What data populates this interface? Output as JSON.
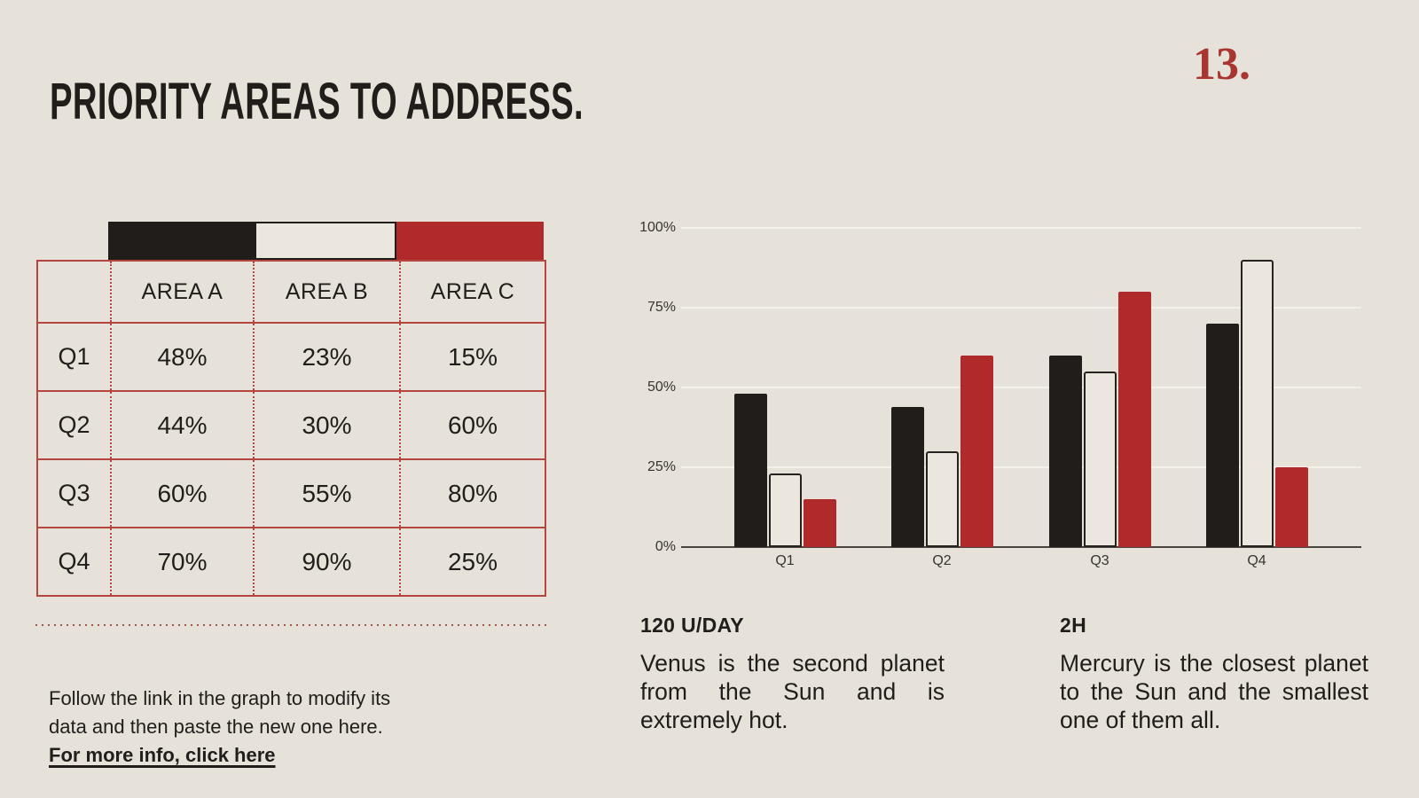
{
  "slide": {
    "title": "PRIORITY AREAS TO ADDRESS.",
    "page_number": "13."
  },
  "colors": {
    "background": "#e6e2d9",
    "ink": "#201d1a",
    "accent_red": "#b12a2b",
    "table_border_red": "#b5463f",
    "cream": "#ebe7de",
    "gridline": "#f2f0e9",
    "page_number_red": "#a93531"
  },
  "table": {
    "corner": "",
    "column_headers": [
      "AREA A",
      "AREA B",
      "AREA C"
    ],
    "rows": [
      {
        "label": "Q1",
        "values": [
          "48%",
          "23%",
          "15%"
        ]
      },
      {
        "label": "Q2",
        "values": [
          "44%",
          "30%",
          "60%"
        ]
      },
      {
        "label": "Q3",
        "values": [
          "60%",
          "55%",
          "80%"
        ]
      },
      {
        "label": "Q4",
        "values": [
          "70%",
          "90%",
          "25%"
        ]
      }
    ]
  },
  "chart_data": {
    "type": "bar",
    "title": "",
    "categories": [
      "Q1",
      "Q2",
      "Q3",
      "Q4"
    ],
    "series": [
      {
        "name": "Area A",
        "color": "#201d1a",
        "outlined": false,
        "values": [
          48,
          44,
          60,
          70
        ]
      },
      {
        "name": "Area B",
        "color": "#ebe7de",
        "outlined": true,
        "values": [
          23,
          30,
          55,
          90
        ]
      },
      {
        "name": "Area C",
        "color": "#b12a2b",
        "outlined": false,
        "values": [
          15,
          60,
          80,
          25
        ]
      }
    ],
    "xlabel": "",
    "ylabel": "",
    "ylim": [
      0,
      100
    ],
    "yticks": [
      "0%",
      "25%",
      "50%",
      "75%",
      "100%"
    ],
    "grid": true,
    "legend_position": "none"
  },
  "callouts": [
    {
      "heading": "120 U/DAY",
      "body": "Venus is the second planet from the Sun and is extremely hot."
    },
    {
      "heading": "2H",
      "body": "Mercury is the closest planet to the Sun and the smallest one of them all."
    }
  ],
  "footer": {
    "lines": [
      "Follow the link in the graph to modify its",
      "data and then paste the new one here."
    ],
    "link_label": "For more info, click here"
  }
}
